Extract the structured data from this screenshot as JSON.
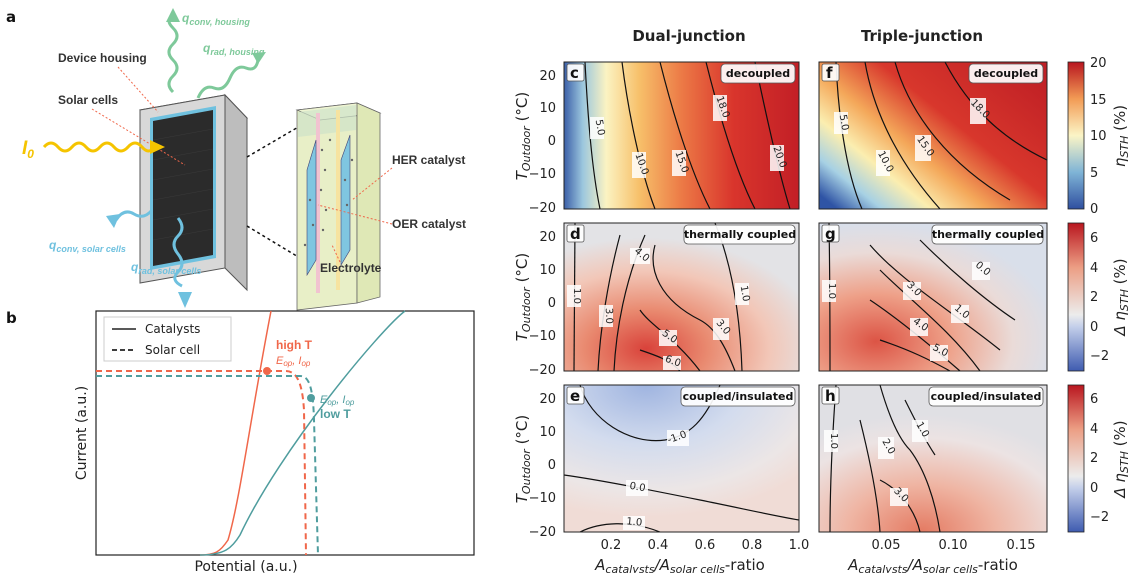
{
  "panel_a": {
    "panel_label": "a",
    "q_conv_housing": "q",
    "q_conv_housing_sub": "conv, housing",
    "q_rad_housing": "q",
    "q_rad_housing_sub": "rad, housing",
    "device_housing": "Device housing",
    "solar_cells": "Solar cells",
    "incident": "I",
    "incident_sub": "0",
    "her_catalyst": "HER catalyst",
    "oer_catalyst": "OER catalyst",
    "electrolyte": "Electrolyte",
    "q_conv_solar": "q",
    "q_conv_solar_sub": "conv, solar cells",
    "q_rad_solar": "q",
    "q_rad_solar_sub": "rad, solar cells",
    "colors": {
      "housing_arrows": "#7ec99a",
      "solar_arrows": "#6fc1df",
      "light": "#f5c400",
      "device": "#d9d9d9",
      "cell": "#2b2b2b"
    }
  },
  "panel_b": {
    "panel_label": "b",
    "xlabel": "Potential (a.u.)",
    "ylabel": "Current (a.u.)",
    "legend": {
      "solid": "Catalysts",
      "dashed": "Solar cell"
    },
    "high_t": "high T",
    "low_t": "low T",
    "eop": "E",
    "eop_sub": "op",
    "iop": "I",
    "iop_sub": "op",
    "colors": {
      "high": "#f0674a",
      "low": "#4f9d9e"
    }
  },
  "columns": {
    "left": "Dual-junction",
    "right": "Triple-junction"
  },
  "axes": {
    "ylabel_main": "T",
    "ylabel_sub": "Outdoor",
    "ylabel_unit": " (°C)",
    "xlabel_left_a": "A",
    "xlabel_left_sub1": "catalysts",
    "xlabel_left_mid": "/A",
    "xlabel_left_sub2": "solar cells",
    "xlabel_left_tail": "-ratio",
    "yticks": [
      "20",
      "10",
      "0",
      "−10",
      "−20"
    ],
    "xticks_left": [
      "0.2",
      "0.4",
      "0.6",
      "0.8",
      "1.0"
    ],
    "xticks_right": [
      "0.05",
      "0.10",
      "0.15"
    ]
  },
  "panels": [
    {
      "id": "c",
      "badge": "decoupled",
      "contours": [
        "5.0",
        "10.0",
        "15.0",
        "18.0",
        "20.0"
      ]
    },
    {
      "id": "f",
      "badge": "decoupled",
      "contours": [
        "5.0",
        "10.0",
        "15.0",
        "18.0"
      ]
    },
    {
      "id": "d",
      "badge": "thermally coupled",
      "contours": [
        "1.0",
        "3.0",
        "4.0",
        "3.0",
        "5.0",
        "6.0",
        "1.0"
      ]
    },
    {
      "id": "g",
      "badge": "thermally coupled",
      "contours": [
        "1.0",
        "3.0",
        "0.0",
        "1.0",
        "4.0",
        "5.0"
      ]
    },
    {
      "id": "e",
      "badge": "coupled/insulated",
      "contours": [
        "-1.0",
        "0.0",
        "1.0"
      ]
    },
    {
      "id": "h",
      "badge": "coupled/insulated",
      "contours": [
        "1.0",
        "2.0",
        "1.0",
        "3.0"
      ]
    }
  ],
  "colorbars": [
    {
      "label_main": "η",
      "label_sub": "STH",
      "label_unit": " (%)",
      "ticks": [
        "20",
        "15",
        "10",
        "5",
        "0"
      ]
    },
    {
      "label_main": "Δ η",
      "label_sub": "STH",
      "label_unit": " (%)",
      "ticks": [
        "6",
        "4",
        "2",
        "0",
        "−2"
      ]
    },
    {
      "label_main": "Δ η",
      "label_sub": "STH",
      "label_unit": " (%)",
      "ticks": [
        "6",
        "4",
        "2",
        "0",
        "−2"
      ]
    }
  ],
  "chart_data": [
    {
      "type": "heatmap",
      "panel": "c",
      "title": "decoupled",
      "xlabel": "A_catalysts/A_solar cells-ratio",
      "ylabel": "T_Outdoor (°C)",
      "xlim": [
        0.0,
        1.0
      ],
      "ylim": [
        -20,
        25
      ],
      "colorbar": "η_STH (%)",
      "clim": [
        0,
        20
      ],
      "contour_levels": [
        5,
        10,
        15,
        18,
        20
      ]
    },
    {
      "type": "heatmap",
      "panel": "f",
      "title": "decoupled",
      "xlabel": "A_catalysts/A_solar cells-ratio",
      "ylabel": "T_Outdoor (°C)",
      "xlim": [
        0.0,
        0.17
      ],
      "ylim": [
        -20,
        25
      ],
      "colorbar": "η_STH (%)",
      "clim": [
        0,
        20
      ],
      "contour_levels": [
        5,
        10,
        15,
        18
      ]
    },
    {
      "type": "heatmap",
      "panel": "d",
      "title": "thermally coupled",
      "xlim": [
        0.0,
        1.0
      ],
      "ylim": [
        -20,
        25
      ],
      "colorbar": "Δ η_STH (%)",
      "clim": [
        -3,
        7
      ],
      "contour_levels": [
        1,
        3,
        4,
        5,
        6
      ]
    },
    {
      "type": "heatmap",
      "panel": "g",
      "title": "thermally coupled",
      "xlim": [
        0.0,
        0.17
      ],
      "ylim": [
        -20,
        25
      ],
      "colorbar": "Δ η_STH (%)",
      "clim": [
        -3,
        7
      ],
      "contour_levels": [
        0,
        1,
        3,
        4,
        5
      ]
    },
    {
      "type": "heatmap",
      "panel": "e",
      "title": "coupled/insulated",
      "xlim": [
        0.0,
        1.0
      ],
      "ylim": [
        -20,
        25
      ],
      "colorbar": "Δ η_STH (%)",
      "clim": [
        -3,
        7
      ],
      "contour_levels": [
        -1,
        0,
        1
      ]
    },
    {
      "type": "heatmap",
      "panel": "h",
      "title": "coupled/insulated",
      "xlim": [
        0.0,
        0.17
      ],
      "ylim": [
        -20,
        25
      ],
      "colorbar": "Δ η_STH (%)",
      "clim": [
        -3,
        7
      ],
      "contour_levels": [
        1,
        2,
        3
      ]
    },
    {
      "type": "line",
      "panel": "b",
      "xlabel": "Potential (a.u.)",
      "ylabel": "Current (a.u.)",
      "series": [
        {
          "name": "Catalysts"
        },
        {
          "name": "Solar cell"
        }
      ]
    }
  ]
}
